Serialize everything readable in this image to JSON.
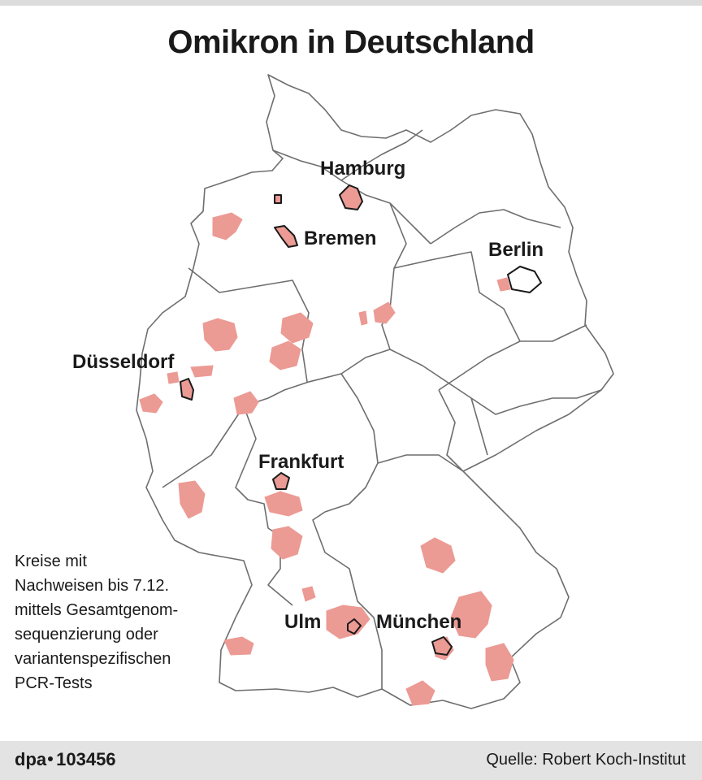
{
  "title": "Omikron in Deutschland",
  "cities": [
    {
      "name": "Hamburg"
    },
    {
      "name": "Bremen"
    },
    {
      "name": "Berlin"
    },
    {
      "name": "Düsseldorf"
    },
    {
      "name": "Frankfurt"
    },
    {
      "name": "Ulm"
    },
    {
      "name": "München"
    }
  ],
  "legend": {
    "lines": [
      "Kreise mit",
      "Nachweisen bis 7.12.",
      "mittels Gesamtgenom-",
      "sequenzierung oder",
      "variantenspezifischen",
      "PCR-Tests"
    ]
  },
  "colors": {
    "affected_district": "#ec9a94",
    "state_border": "#6e6e6e",
    "footer_bg": "#e3e3e3"
  },
  "footer": {
    "agency": "dpa",
    "id": "103456",
    "source": "Quelle: Robert Koch-Institut"
  }
}
